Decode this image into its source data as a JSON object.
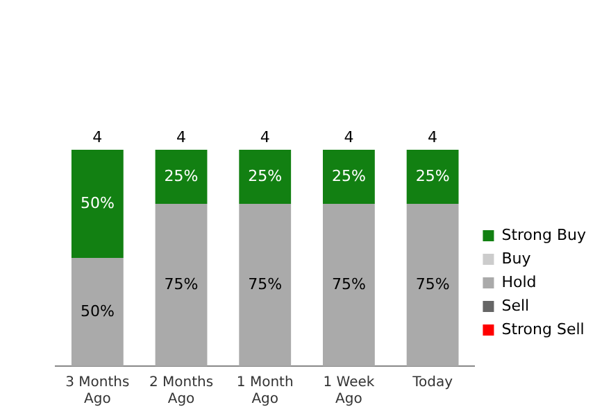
{
  "chart_data": {
    "type": "bar",
    "stacked": true,
    "categories": [
      "3 Months Ago",
      "2 Months Ago",
      "1 Month Ago",
      "1 Week Ago",
      "Today"
    ],
    "series": [
      {
        "name": "Strong Sell",
        "color": "#ff0000",
        "values": [
          null,
          null,
          null,
          null,
          null
        ],
        "value_labels": [
          null,
          null,
          null,
          null,
          null
        ]
      },
      {
        "name": "Sell",
        "color": "#666666",
        "values": [
          null,
          null,
          null,
          null,
          null
        ],
        "value_labels": [
          null,
          null,
          null,
          null,
          null
        ]
      },
      {
        "name": "Hold",
        "color": "#aaaaaa",
        "values": [
          50,
          75,
          75,
          75,
          75
        ],
        "value_labels": [
          "50%",
          "75%",
          "75%",
          "75%",
          "75%"
        ]
      },
      {
        "name": "Buy",
        "color": "#cccccc",
        "values": [
          null,
          null,
          null,
          null,
          null
        ],
        "value_labels": [
          null,
          null,
          null,
          null,
          null
        ]
      },
      {
        "name": "Strong Buy",
        "color": "#128012",
        "values": [
          50,
          25,
          25,
          25,
          25
        ],
        "value_labels": [
          "50%",
          "25%",
          "25%",
          "25%",
          "25%"
        ]
      }
    ],
    "annotations": [
      {
        "text": "4",
        "x": "3 Months Ago",
        "y": 100
      },
      {
        "text": "4",
        "x": "2 Months Ago",
        "y": 100
      },
      {
        "text": "4",
        "x": "1 Month Ago",
        "y": 100
      },
      {
        "text": "4",
        "x": "1 Week Ago",
        "y": 100
      },
      {
        "text": "4",
        "x": "Today",
        "y": 100
      }
    ],
    "ylim": [
      0,
      100
    ],
    "tick_labels": "x",
    "grid": false,
    "legend": "right"
  }
}
